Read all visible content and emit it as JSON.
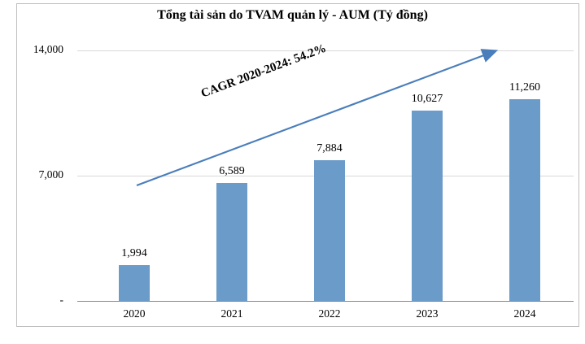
{
  "title": "Tổng tài sản do TVAM quản lý - AUM (Tỷ đồng)",
  "chart_data": {
    "type": "bar",
    "title": "Tổng tài sản do TVAM quản lý - AUM (Tỷ đồng)",
    "categories": [
      "2020",
      "2021",
      "2022",
      "2023",
      "2024"
    ],
    "values": [
      1994,
      6589,
      7884,
      10627,
      11260
    ],
    "value_labels": [
      "1,994",
      "6,589",
      "7,884",
      "10,627",
      "11,260"
    ],
    "xlabel": "",
    "ylabel": "",
    "ylim": [
      0,
      14000
    ],
    "yticks": [
      {
        "value": 0,
        "label": "-"
      },
      {
        "value": 7000,
        "label": "7,000"
      },
      {
        "value": 14000,
        "label": "14,000"
      }
    ],
    "grid": "horizontal",
    "legend": "none",
    "annotation": "CAGR 2020-2024: 54.2%",
    "bar_color": "#6b9bc9",
    "arrow_color": "#4a7ebb",
    "gridline_color": "#d9d9d9",
    "axis_color": "#898989"
  }
}
